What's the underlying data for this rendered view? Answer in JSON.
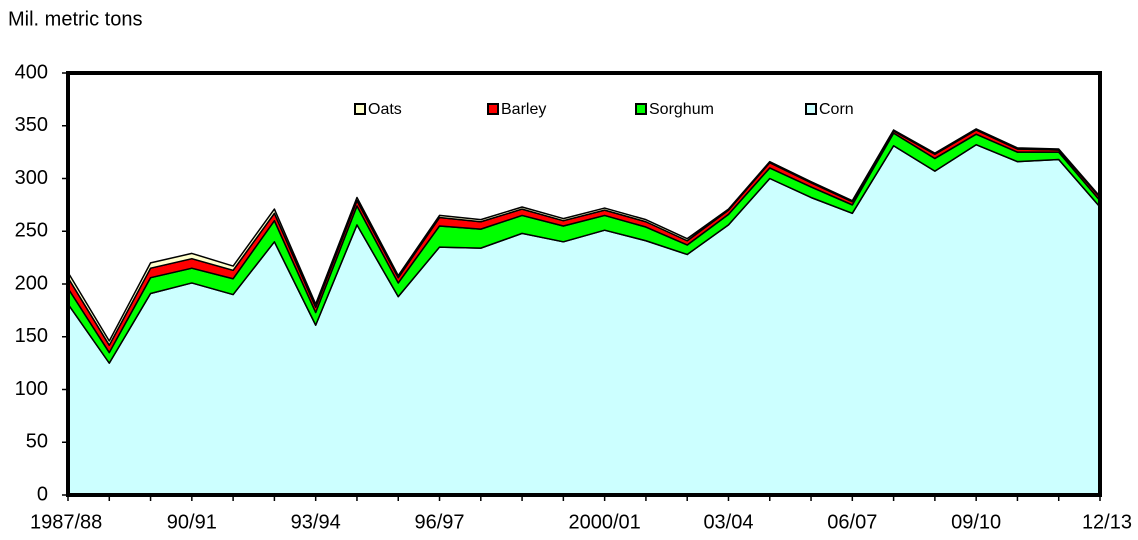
{
  "chart_data": {
    "type": "stacked_area",
    "y_label": "Mil. metric tons",
    "categories": [
      "1987/88",
      null,
      null,
      "90/91",
      null,
      null,
      "93/94",
      null,
      null,
      "96/97",
      null,
      null,
      null,
      "2000/01",
      null,
      null,
      "03/04",
      null,
      null,
      "06/07",
      null,
      null,
      "09/10",
      null,
      null,
      "12/13"
    ],
    "series": [
      {
        "name": "Corn",
        "color": "#ccffff",
        "values": [
          181,
          125,
          191,
          201,
          190,
          240,
          161,
          256,
          188,
          235,
          234,
          248,
          240,
          251,
          241,
          228,
          256,
          300,
          282,
          267,
          331,
          307,
          332,
          316,
          318,
          273
        ]
      },
      {
        "name": "Sorghum",
        "color": "#00ff00",
        "values": [
          15,
          10,
          15,
          14,
          15,
          20,
          12,
          18,
          13,
          20,
          18,
          17,
          15,
          14,
          13,
          9,
          10,
          10,
          10,
          8,
          12,
          12,
          10,
          9,
          7,
          6
        ]
      },
      {
        "name": "Barley",
        "color": "#ff0000",
        "values": [
          10,
          7,
          9,
          9,
          8,
          7,
          5,
          5,
          5,
          8,
          7,
          6,
          5,
          5,
          5,
          4,
          4,
          5,
          4,
          3,
          2,
          4,
          4,
          3,
          2,
          3
        ]
      },
      {
        "name": "Oats",
        "color": "#ffffcc",
        "values": [
          5,
          4,
          5,
          5,
          4,
          4,
          3,
          3,
          2,
          2,
          2,
          2,
          2,
          2,
          2,
          2,
          1,
          1,
          1,
          1,
          1,
          1,
          1,
          1,
          1,
          1
        ]
      }
    ],
    "ylim": [
      0,
      400
    ],
    "yticks": [
      0,
      50,
      100,
      150,
      200,
      250,
      300,
      350,
      400
    ]
  }
}
